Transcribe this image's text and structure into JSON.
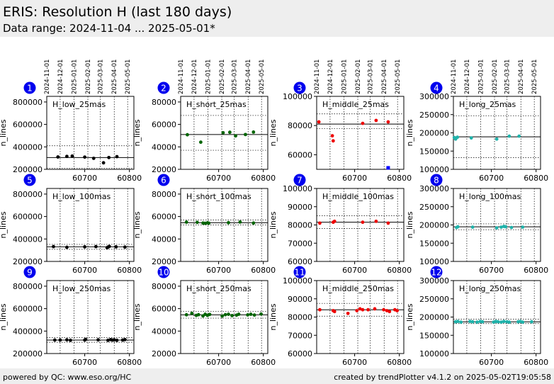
{
  "header": {
    "title": "ERIS: Resolution H (last 180 days)",
    "subtitle": "Data range: 2024-11-04 ... 2025-05-01*"
  },
  "footer": {
    "left": "powered by QC: www.eso.org/HC",
    "right": "created by trendPlotter v4.1.2 on 2025-05-02T19:05:58"
  },
  "colors": {
    "low": "#000000",
    "short": "#006400",
    "middle": "#ee0000",
    "long": "#20b2aa",
    "outlier": "#0000ff",
    "badge": "#0000ee"
  },
  "date_ticks": [
    "2024-11-01",
    "2024-12-01",
    "2025-01-01",
    "2025-02-01",
    "2025-03-01",
    "2025-04-01",
    "2025-05-01"
  ],
  "chart_data": [
    {
      "id": 1,
      "type": "scatter",
      "label": "H_low_25mas",
      "ylabel": "n_lines",
      "color_key": "low",
      "xlim": [
        60615,
        60810
      ],
      "xticks": [
        60700,
        60800
      ],
      "ylim": [
        200000,
        850000
      ],
      "yticks": [
        200000,
        400000,
        600000,
        800000
      ],
      "ref": 305000,
      "band": [
        210000,
        410000
      ],
      "x": [
        60640,
        60660,
        60672,
        60700,
        60720,
        60742,
        60754,
        60772
      ],
      "y": [
        310000,
        315000,
        318000,
        309000,
        298000,
        258000,
        305000,
        313000
      ],
      "outliers": {
        "x": [],
        "y": []
      }
    },
    {
      "id": 2,
      "type": "scatter",
      "label": "H_short_25mas",
      "ylabel": "n_lines",
      "color_key": "short",
      "xlim": [
        60615,
        60810
      ],
      "xticks": [
        60700,
        60800
      ],
      "ylim": [
        20000,
        85000
      ],
      "yticks": [
        20000,
        40000,
        60000,
        80000
      ],
      "ref": 51000,
      "band": [
        37000,
        68000
      ],
      "x": [
        60630,
        60660,
        60710,
        60725,
        60738,
        60760,
        60778
      ],
      "y": [
        50800,
        44200,
        52600,
        53000,
        49800,
        51000,
        53200
      ],
      "outliers": {
        "x": [],
        "y": []
      }
    },
    {
      "id": 3,
      "type": "scatter",
      "label": "H_middle_25mas",
      "ylabel": "n_lines",
      "color_key": "middle",
      "xlim": [
        60615,
        60810
      ],
      "xticks": [
        60700,
        60800
      ],
      "ylim": [
        50000,
        100000
      ],
      "yticks": [
        60000,
        80000,
        100000
      ],
      "ref": 81000,
      "band": [
        78000,
        88000
      ],
      "x": [
        60620,
        60650,
        60652,
        60718,
        60748,
        60775
      ],
      "y": [
        82500,
        73000,
        69500,
        81500,
        83500,
        82500
      ],
      "outliers": {
        "x": [
          60775
        ],
        "y": [
          51000
        ]
      }
    },
    {
      "id": 4,
      "type": "scatter",
      "label": "H_long_25mas",
      "ylabel": "n_lines",
      "color_key": "long",
      "xlim": [
        60615,
        60810
      ],
      "xticks": [
        60700,
        60800
      ],
      "ylim": [
        100000,
        300000
      ],
      "yticks": [
        100000,
        150000,
        200000,
        250000,
        300000
      ],
      "ref": 189000,
      "band": [
        132000,
        247000
      ],
      "x": [
        60617,
        60620,
        60624,
        60655,
        60712,
        60740,
        60762
      ],
      "y": [
        187000,
        183000,
        188000,
        186000,
        183000,
        191000,
        191000
      ],
      "outliers": {
        "x": [],
        "y": []
      }
    },
    {
      "id": 5,
      "type": "scatter",
      "label": "H_low_100mas",
      "ylabel": "n_lines",
      "color_key": "low",
      "xlim": [
        60615,
        60810
      ],
      "xticks": [
        60700,
        60800
      ],
      "ylim": [
        200000,
        850000
      ],
      "yticks": [
        200000,
        400000,
        600000,
        800000
      ],
      "ref": 330000,
      "band": [
        308000,
        352000
      ],
      "x": [
        60630,
        60660,
        60700,
        60725,
        60750,
        60752,
        60755,
        60770,
        60790
      ],
      "y": [
        332000,
        326000,
        330000,
        332000,
        322000,
        328000,
        334000,
        330000,
        328000
      ],
      "outliers": {
        "x": [],
        "y": []
      }
    },
    {
      "id": 6,
      "type": "scatter",
      "label": "H_short_100mas",
      "ylabel": "n_lines",
      "color_key": "short",
      "xlim": [
        60615,
        60810
      ],
      "xticks": [
        60700,
        60800
      ],
      "ylim": [
        20000,
        85000
      ],
      "yticks": [
        20000,
        40000,
        60000,
        80000
      ],
      "ref": 54500,
      "band": [
        52500,
        57000
      ],
      "x": [
        60628,
        60652,
        60665,
        60670,
        60675,
        60678,
        60722,
        60748,
        60778
      ],
      "y": [
        55000,
        54800,
        54200,
        54000,
        54400,
        54100,
        54500,
        55100,
        54200
      ],
      "outliers": {
        "x": [],
        "y": []
      }
    },
    {
      "id": 7,
      "type": "scatter",
      "label": "H_middle_100mas",
      "ylabel": "n_lines",
      "color_key": "middle",
      "xlim": [
        60615,
        60810
      ],
      "xticks": [
        60700,
        60800
      ],
      "ylim": [
        60000,
        100000
      ],
      "yticks": [
        60000,
        70000,
        80000,
        90000,
        100000
      ],
      "ref": 81500,
      "band": [
        78000,
        85000
      ],
      "x": [
        60622,
        60652,
        60655,
        60718,
        60748,
        60775
      ],
      "y": [
        81000,
        81500,
        82000,
        81500,
        82000,
        81000
      ],
      "outliers": {
        "x": [],
        "y": []
      }
    },
    {
      "id": 8,
      "type": "scatter",
      "label": "H_long_100mas",
      "ylabel": "n_lines",
      "color_key": "long",
      "xlim": [
        60615,
        60810
      ],
      "xticks": [
        60700,
        60800
      ],
      "ylim": [
        100000,
        300000
      ],
      "yticks": [
        100000,
        150000,
        200000,
        250000,
        300000
      ],
      "ref": 195000,
      "band": [
        187000,
        203000
      ],
      "x": [
        60622,
        60625,
        60658,
        60712,
        60722,
        60728,
        60732,
        60745,
        60770
      ],
      "y": [
        193000,
        195000,
        194000,
        192000,
        194000,
        196000,
        195000,
        193000,
        194000
      ],
      "outliers": {
        "x": [],
        "y": []
      }
    },
    {
      "id": 9,
      "type": "scatter",
      "label": "H_low_250mas",
      "ylabel": "n_lines",
      "color_key": "low",
      "xlim": [
        60615,
        60810
      ],
      "xticks": [
        60700,
        60800
      ],
      "ylim": [
        200000,
        850000
      ],
      "yticks": [
        200000,
        400000,
        600000,
        800000
      ],
      "ref": 320000,
      "band": [
        300000,
        342000
      ],
      "x": [
        60633,
        60645,
        60660,
        60668,
        60700,
        60702,
        60730,
        60752,
        60758,
        60762,
        60766,
        60772,
        60785,
        60790
      ],
      "y": [
        320000,
        320000,
        322000,
        318000,
        320000,
        326000,
        322000,
        318000,
        324000,
        320000,
        322000,
        318000,
        320000,
        324000
      ],
      "outliers": {
        "x": [],
        "y": []
      }
    },
    {
      "id": 10,
      "type": "scatter",
      "label": "H_short_250mas",
      "ylabel": "n_lines",
      "color_key": "short",
      "xlim": [
        60615,
        60810
      ],
      "xticks": [
        60700,
        60800
      ],
      "ylim": [
        20000,
        85000
      ],
      "yticks": [
        20000,
        40000,
        60000,
        80000
      ],
      "ref": 54500,
      "band": [
        51500,
        57500
      ],
      "x": [
        60628,
        60640,
        60650,
        60655,
        60665,
        60670,
        60675,
        60680,
        60708,
        60715,
        60722,
        60730,
        60740,
        60745,
        60765,
        60772,
        60780,
        60795
      ],
      "y": [
        54500,
        55800,
        54000,
        54600,
        53500,
        55000,
        54000,
        54800,
        53400,
        54600,
        55000,
        53800,
        54200,
        55000,
        54400,
        55000,
        54300,
        55200
      ],
      "outliers": {
        "x": [],
        "y": []
      }
    },
    {
      "id": 11,
      "type": "scatter",
      "label": "H_middle_250mas",
      "ylabel": "n_lines",
      "color_key": "middle",
      "xlim": [
        60615,
        60810
      ],
      "xticks": [
        60700,
        60800
      ],
      "ylim": [
        60000,
        100000
      ],
      "yticks": [
        60000,
        70000,
        80000,
        90000,
        100000
      ],
      "ref": 84000,
      "band": [
        80500,
        87500
      ],
      "x": [
        60622,
        60652,
        60655,
        60685,
        60705,
        60712,
        60718,
        60730,
        60745,
        60765,
        60772,
        60778,
        60790,
        60795
      ],
      "y": [
        84000,
        83500,
        83000,
        82000,
        83500,
        84500,
        84000,
        84000,
        84500,
        84000,
        83500,
        83000,
        84000,
        83500
      ],
      "outliers": {
        "x": [],
        "y": []
      }
    },
    {
      "id": 12,
      "type": "scatter",
      "label": "H_long_250mas",
      "ylabel": "n_lines",
      "color_key": "long",
      "xlim": [
        60615,
        60810
      ],
      "xticks": [
        60700,
        60800
      ],
      "ylim": [
        100000,
        300000
      ],
      "yticks": [
        100000,
        150000,
        200000,
        250000,
        300000
      ],
      "ref": 187000,
      "band": [
        182000,
        194000
      ],
      "x": [
        60620,
        60625,
        60632,
        60652,
        60658,
        60668,
        60675,
        60680,
        60705,
        60710,
        60715,
        60722,
        60728,
        60735,
        60740,
        60760,
        60765,
        60770,
        60790
      ],
      "y": [
        187000,
        188000,
        186000,
        188000,
        187000,
        186000,
        188000,
        187000,
        186000,
        188000,
        187000,
        186000,
        188000,
        187000,
        186000,
        187000,
        188000,
        186000,
        187000
      ],
      "outliers": {
        "x": [],
        "y": []
      }
    }
  ]
}
